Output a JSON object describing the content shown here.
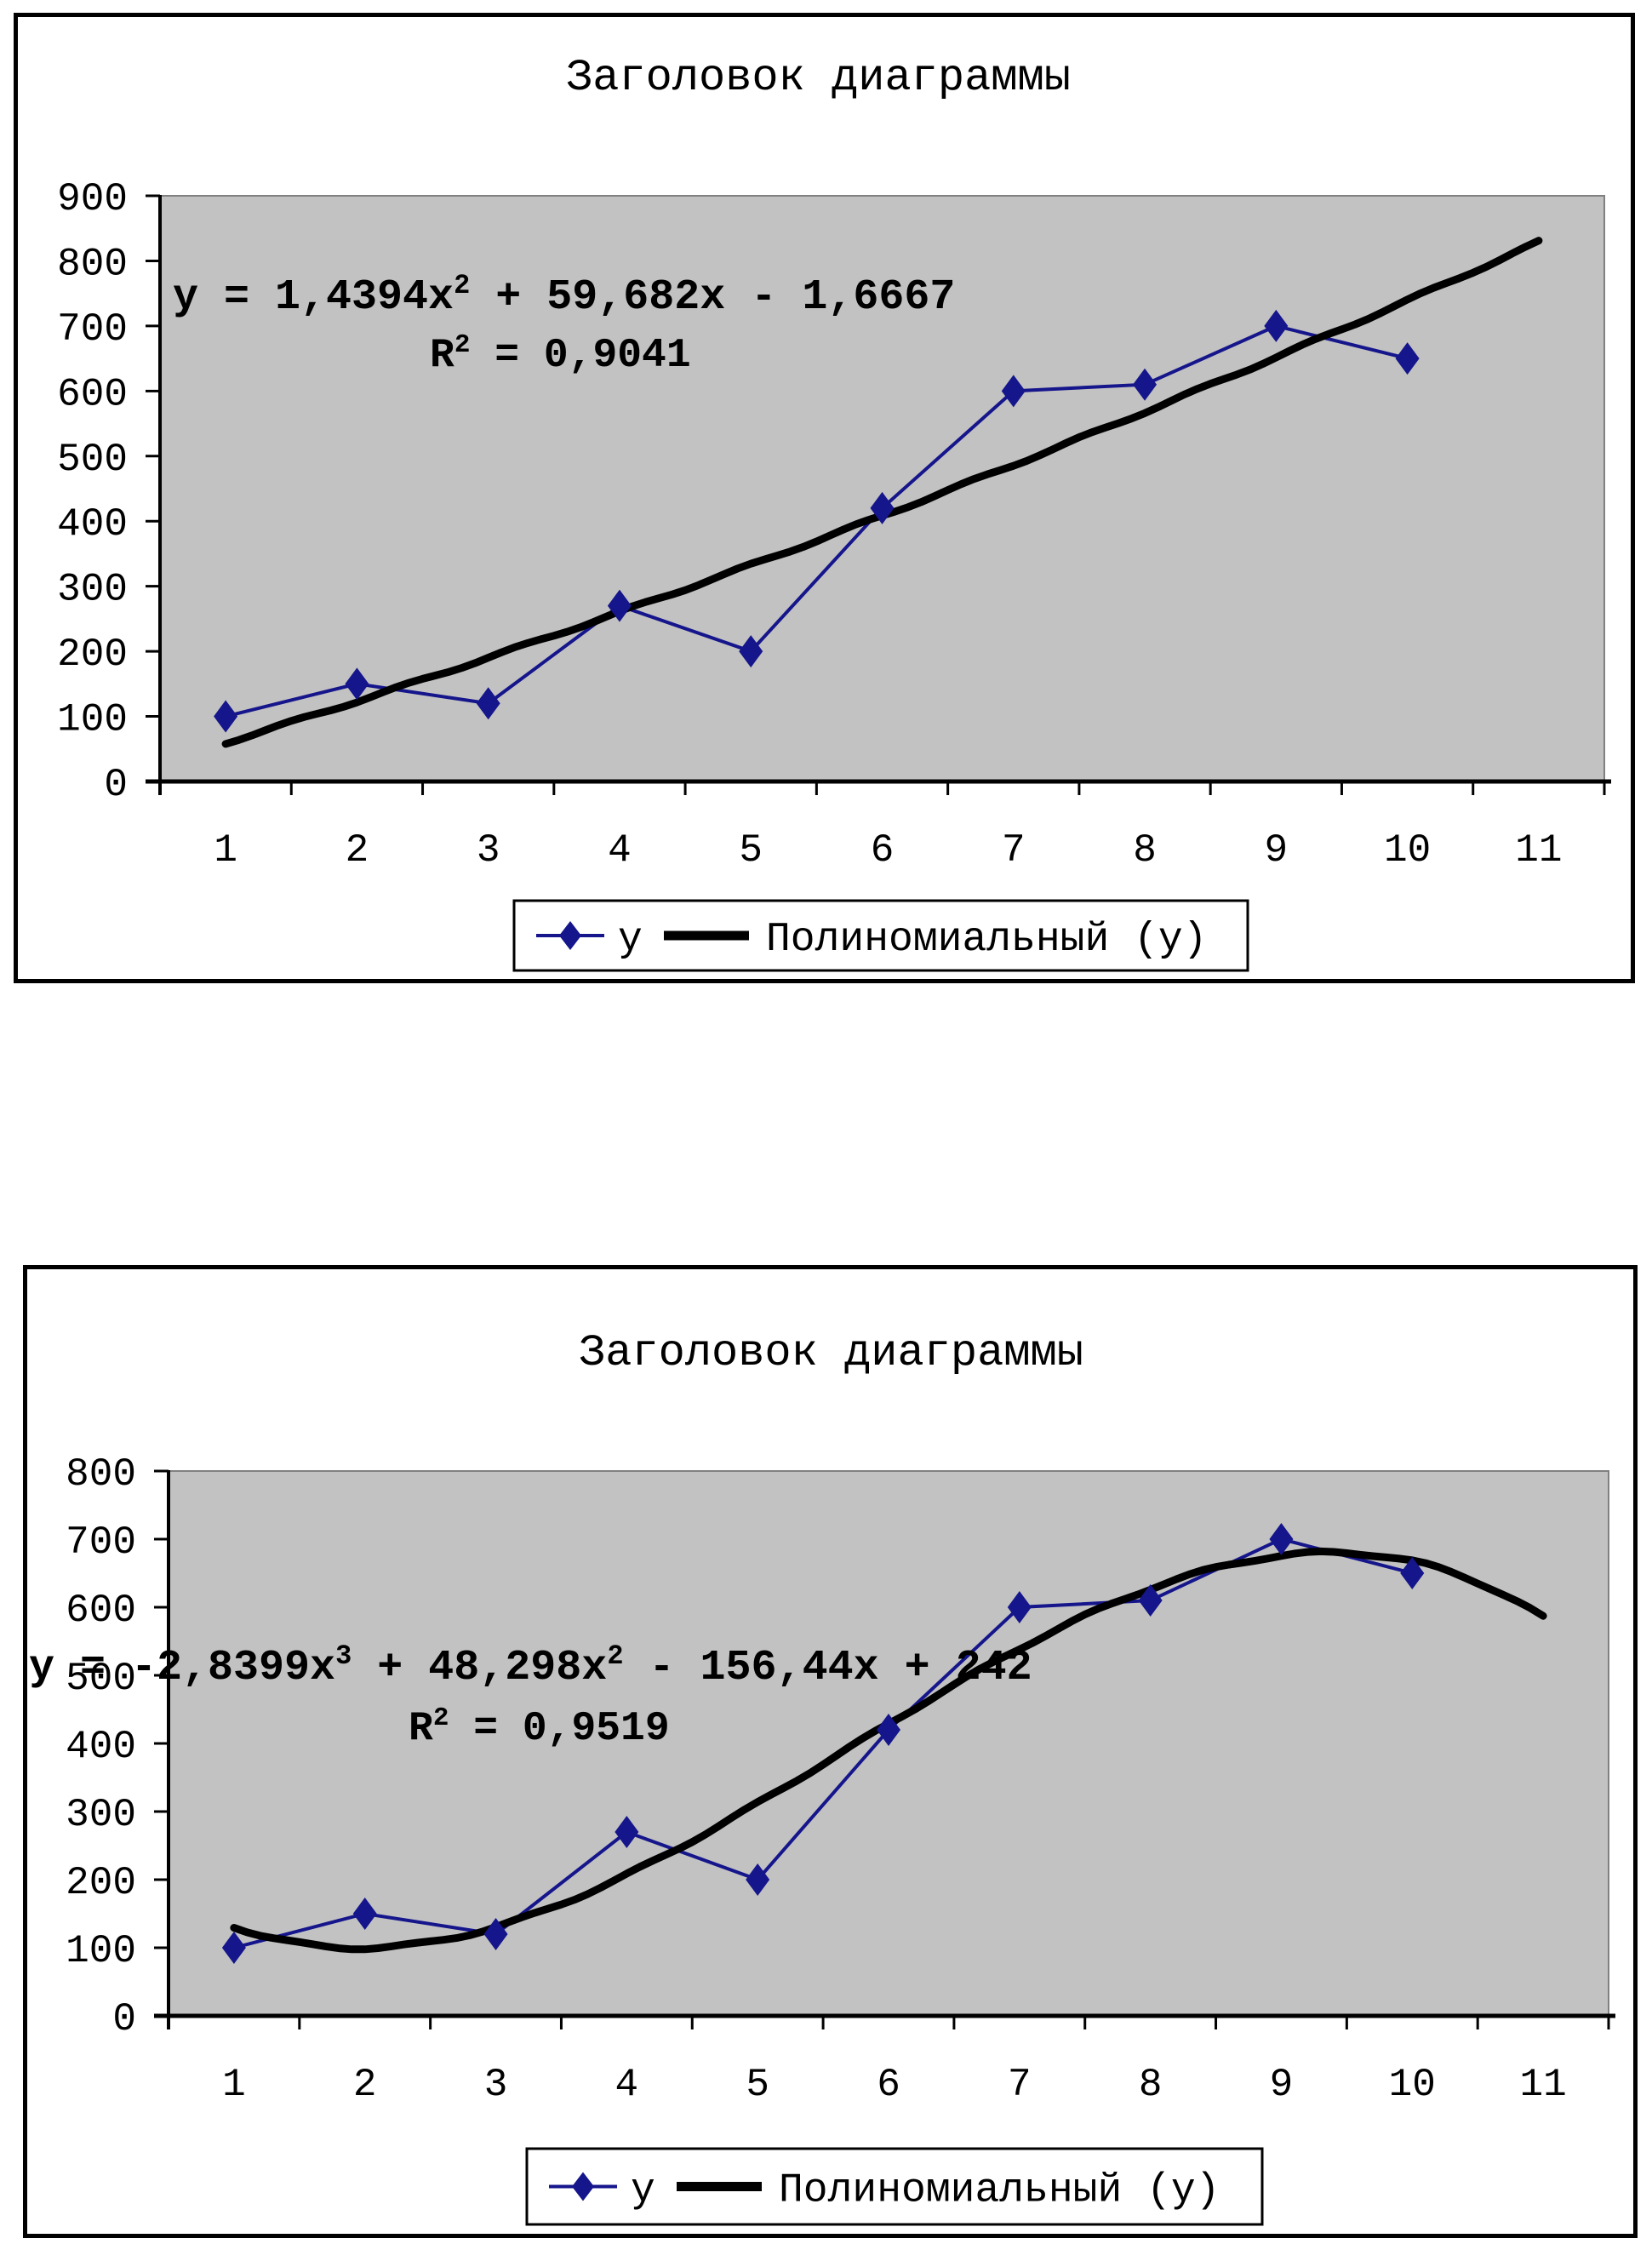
{
  "page": {
    "background": "#ffffff"
  },
  "colors": {
    "series": "#15158c",
    "trendline": "#000000",
    "plot_background": "#c2c2c2",
    "plot_border": "#808080",
    "axis": "#000000",
    "legend_border": "#000000",
    "legend_background": "#ffffff",
    "text": "#000000"
  },
  "chart_data": [
    {
      "type": "line",
      "title": "Заголовок диаграммы",
      "x": [
        1,
        2,
        3,
        4,
        5,
        6,
        7,
        8,
        9,
        10
      ],
      "series": [
        {
          "name": "y",
          "values": [
            100,
            150,
            120,
            270,
            200,
            420,
            600,
            610,
            700,
            650
          ]
        }
      ],
      "trendline": {
        "name": "Полиномиальный (y)",
        "kind": "polynomial",
        "degree": 2,
        "coeffs_ascending": [
          -1.6667,
          59.682,
          1.4394
        ],
        "domain": [
          1,
          11
        ]
      },
      "equation_parts": [
        {
          "t": "y = 1,4394x"
        },
        {
          "sup": "2"
        },
        {
          "t": " + 59,682x - 1,6667"
        }
      ],
      "r2_parts": [
        {
          "t": "R"
        },
        {
          "sup": "2"
        },
        {
          "t": " = 0,9041"
        }
      ],
      "y_tick_labels": [
        "0",
        "100",
        "200",
        "300",
        "400",
        "500",
        "600",
        "700",
        "800",
        "900"
      ],
      "x_tick_labels": [
        "1",
        "2",
        "3",
        "4",
        "5",
        "6",
        "7",
        "8",
        "9",
        "10",
        "11"
      ],
      "ylim": [
        0,
        900
      ],
      "x_categories": 11,
      "grid": false,
      "legend_position": "bottom",
      "legend_entries": [
        "y",
        "Полиномиальный (y)"
      ]
    },
    {
      "type": "line",
      "title": "Заголовок диаграммы",
      "x": [
        1,
        2,
        3,
        4,
        5,
        6,
        7,
        8,
        9,
        10
      ],
      "series": [
        {
          "name": "y",
          "values": [
            100,
            150,
            120,
            270,
            200,
            420,
            600,
            610,
            700,
            650
          ]
        }
      ],
      "trendline": {
        "name": "Полиномиальный (y)",
        "kind": "polynomial",
        "degree": 3,
        "coeffs_ascending": [
          242,
          -156.44,
          48.298,
          -2.8399
        ],
        "domain": [
          1,
          11
        ]
      },
      "equation_parts": [
        {
          "t": "y = -2,8399x"
        },
        {
          "sup": "3"
        },
        {
          "t": " + 48,298x"
        },
        {
          "sup": "2"
        },
        {
          "t": " - 156,44x + 242"
        }
      ],
      "r2_parts": [
        {
          "t": "R"
        },
        {
          "sup": "2"
        },
        {
          "t": " = 0,9519"
        }
      ],
      "y_tick_labels": [
        "0",
        "100",
        "200",
        "300",
        "400",
        "500",
        "600",
        "700",
        "800"
      ],
      "x_tick_labels": [
        "1",
        "2",
        "3",
        "4",
        "5",
        "6",
        "7",
        "8",
        "9",
        "10",
        "11"
      ],
      "ylim": [
        0,
        800
      ],
      "x_categories": 11,
      "grid": false,
      "legend_position": "bottom",
      "legend_entries": [
        "y",
        "Полиномиальный (y)"
      ]
    }
  ]
}
